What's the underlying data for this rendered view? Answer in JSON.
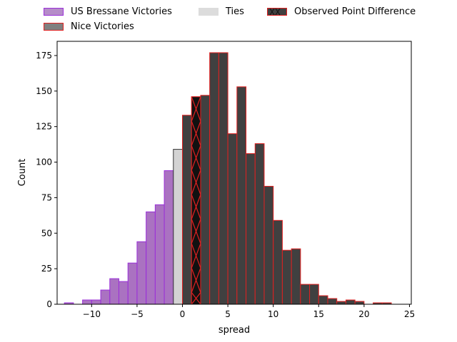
{
  "chart_data": {
    "type": "bar",
    "xlabel": "spread",
    "ylabel": "Count",
    "xlim": [
      -13.8,
      25.2
    ],
    "ylim": [
      0,
      185
    ],
    "xticks": [
      -10,
      -5,
      0,
      5,
      10,
      15,
      20,
      25
    ],
    "yticks": [
      0,
      25,
      50,
      75,
      100,
      125,
      150,
      175
    ],
    "grid": false,
    "legend_position": "top",
    "bin_width": 1,
    "series": [
      {
        "name": "US Bressane Victories",
        "color": "#9B59B6",
        "edge": "#9B30D9",
        "bins": [
          {
            "x": -12.5,
            "count": 1
          },
          {
            "x": -10.5,
            "count": 3
          },
          {
            "x": -9.5,
            "count": 3
          },
          {
            "x": -8.5,
            "count": 10
          },
          {
            "x": -7.5,
            "count": 18
          },
          {
            "x": -6.5,
            "count": 16
          },
          {
            "x": -5.5,
            "count": 29
          },
          {
            "x": -4.5,
            "count": 44
          },
          {
            "x": -3.5,
            "count": 65
          },
          {
            "x": -2.5,
            "count": 70
          },
          {
            "x": -1.5,
            "count": 94
          }
        ]
      },
      {
        "name": "Ties",
        "color": "#d3d3d3",
        "edge": "#333333",
        "bins": [
          {
            "x": -0.5,
            "count": 109
          }
        ]
      },
      {
        "name": "Nice Victories",
        "color": "#404040",
        "edge": "#e02020",
        "bins": [
          {
            "x": 0.5,
            "count": 133
          },
          {
            "x": 1.5,
            "count": 146
          },
          {
            "x": 2.5,
            "count": 147
          },
          {
            "x": 3.5,
            "count": 177
          },
          {
            "x": 4.5,
            "count": 177
          },
          {
            "x": 5.5,
            "count": 120
          },
          {
            "x": 6.5,
            "count": 153
          },
          {
            "x": 7.5,
            "count": 106
          },
          {
            "x": 8.5,
            "count": 113
          },
          {
            "x": 9.5,
            "count": 83
          },
          {
            "x": 10.5,
            "count": 59
          },
          {
            "x": 11.5,
            "count": 38
          },
          {
            "x": 12.5,
            "count": 39
          },
          {
            "x": 13.5,
            "count": 14
          },
          {
            "x": 14.5,
            "count": 14
          },
          {
            "x": 15.5,
            "count": 6
          },
          {
            "x": 16.5,
            "count": 4
          },
          {
            "x": 17.5,
            "count": 2
          },
          {
            "x": 18.5,
            "count": 3
          },
          {
            "x": 19.5,
            "count": 2
          },
          {
            "x": 21.5,
            "count": 1
          },
          {
            "x": 22.5,
            "count": 1
          }
        ]
      }
    ],
    "observed": {
      "name": "Observed Point Difference",
      "x": 1.5,
      "count": 146,
      "color": "#111111",
      "edge": "#e02020",
      "hatch": "x"
    }
  }
}
